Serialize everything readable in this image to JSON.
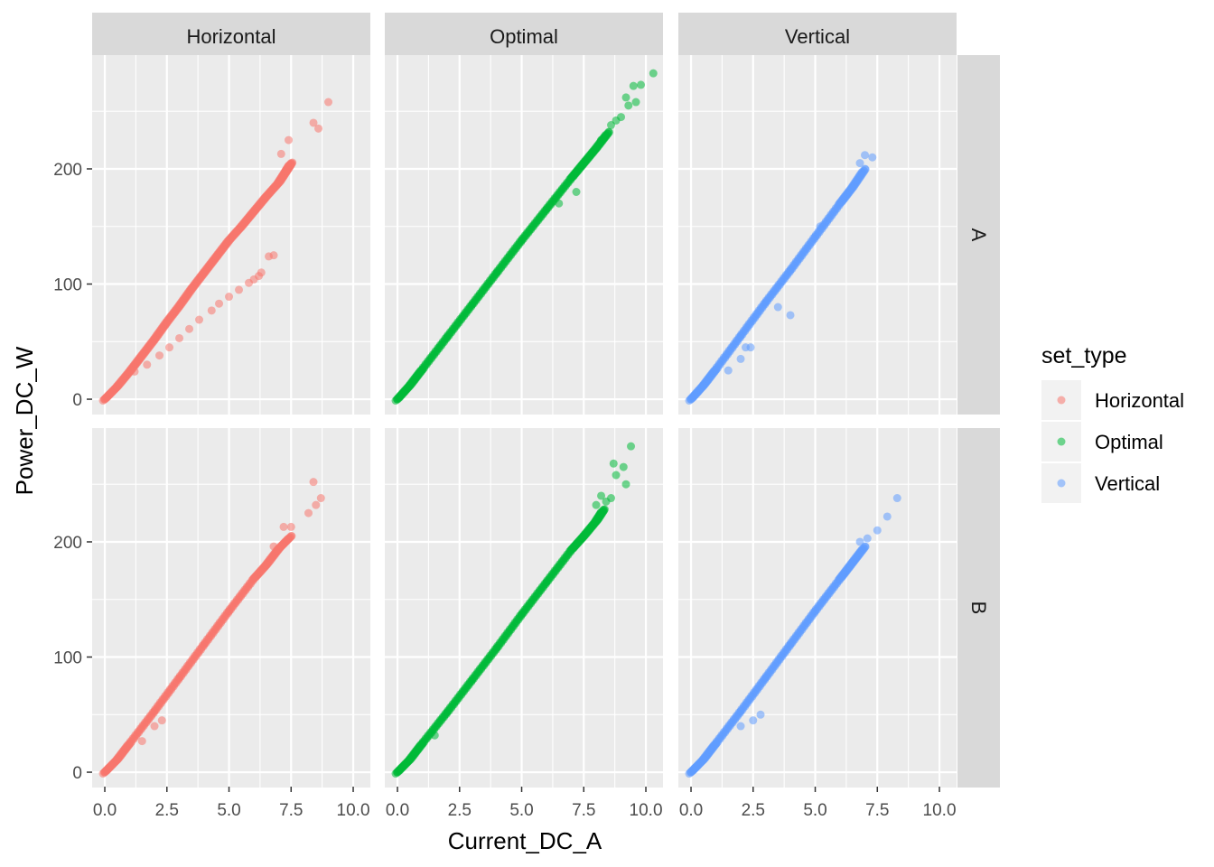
{
  "chart_data": {
    "type": "scatter",
    "xlabel": "Current_DC_A",
    "ylabel": "Power_DC_W",
    "xlim": [
      -0.51,
      10.69
    ],
    "ylim": [
      -13.3,
      298.8
    ],
    "x_ticks": [
      "0.0",
      "2.5",
      "5.0",
      "7.5",
      "10.0"
    ],
    "x_tick_values": [
      0,
      2.5,
      5,
      7.5,
      10
    ],
    "y_ticks": [
      "0",
      "100",
      "200"
    ],
    "y_tick_values": [
      0,
      100,
      200
    ],
    "grid": true,
    "facet_cols": [
      "Horizontal",
      "Optimal",
      "Vertical"
    ],
    "facet_rows": [
      "A",
      "B"
    ],
    "legend": {
      "title": "set_type",
      "placement": "right",
      "entries": [
        {
          "label": "Horizontal",
          "color": "#F8766D"
        },
        {
          "label": "Optimal",
          "color": "#00BA38"
        },
        {
          "label": "Vertical",
          "color": "#619CFF"
        }
      ]
    },
    "panels": [
      {
        "col": "Horizontal",
        "row": "A",
        "color": "#F8766D",
        "main": [
          [
            0,
            0
          ],
          [
            0.5,
            11
          ],
          [
            1,
            24
          ],
          [
            1.5,
            38
          ],
          [
            2,
            52
          ],
          [
            2.5,
            67
          ],
          [
            3,
            81
          ],
          [
            3.5,
            96
          ],
          [
            4,
            110
          ],
          [
            4.5,
            124
          ],
          [
            5,
            138
          ],
          [
            5.5,
            150
          ],
          [
            6,
            163
          ],
          [
            6.5,
            176
          ],
          [
            7,
            188
          ],
          [
            7.3,
            198
          ],
          [
            7.5,
            205
          ]
        ],
        "points": [
          [
            1.2,
            24
          ],
          [
            1.7,
            30
          ],
          [
            2.2,
            38
          ],
          [
            2.6,
            45
          ],
          [
            3.0,
            53
          ],
          [
            3.4,
            61
          ],
          [
            3.8,
            69
          ],
          [
            4.3,
            77
          ],
          [
            4.6,
            83
          ],
          [
            5.0,
            89
          ],
          [
            5.4,
            95
          ],
          [
            5.8,
            101
          ],
          [
            6.0,
            104
          ],
          [
            6.2,
            107
          ],
          [
            6.3,
            110
          ],
          [
            6.6,
            124
          ],
          [
            6.8,
            125
          ],
          [
            7.1,
            213
          ],
          [
            7.4,
            225
          ],
          [
            8.4,
            240
          ],
          [
            8.6,
            235
          ],
          [
            9.0,
            258
          ]
        ]
      },
      {
        "col": "Optimal",
        "row": "A",
        "color": "#00BA38",
        "main": [
          [
            0,
            0
          ],
          [
            0.5,
            12
          ],
          [
            1,
            26
          ],
          [
            2,
            54
          ],
          [
            3,
            82
          ],
          [
            4,
            110
          ],
          [
            5,
            138
          ],
          [
            6,
            165
          ],
          [
            7,
            192
          ],
          [
            7.5,
            205
          ],
          [
            8,
            218
          ],
          [
            8.5,
            232
          ]
        ],
        "points": [
          [
            8.8,
            242
          ],
          [
            9.0,
            245
          ],
          [
            8.2,
            225
          ],
          [
            8.6,
            238
          ],
          [
            9.3,
            255
          ],
          [
            9.6,
            258
          ],
          [
            9.2,
            262
          ],
          [
            9.5,
            272
          ],
          [
            9.8,
            273
          ],
          [
            10.3,
            283
          ],
          [
            7.2,
            180
          ],
          [
            6.5,
            170
          ]
        ]
      },
      {
        "col": "Vertical",
        "row": "A",
        "color": "#619CFF",
        "main": [
          [
            0,
            0
          ],
          [
            0.5,
            12
          ],
          [
            1,
            26
          ],
          [
            2,
            55
          ],
          [
            3,
            84
          ],
          [
            4,
            112
          ],
          [
            5,
            141
          ],
          [
            6,
            170
          ],
          [
            6.5,
            184
          ],
          [
            7,
            200
          ]
        ],
        "points": [
          [
            1.5,
            25
          ],
          [
            2.0,
            35
          ],
          [
            2.4,
            45
          ],
          [
            2.2,
            45
          ],
          [
            4.0,
            73
          ],
          [
            3.5,
            80
          ],
          [
            6.8,
            205
          ],
          [
            7.0,
            212
          ],
          [
            7.3,
            210
          ],
          [
            5.2,
            150
          ]
        ]
      },
      {
        "col": "Horizontal",
        "row": "B",
        "color": "#F8766D",
        "main": [
          [
            0,
            0
          ],
          [
            0.5,
            11
          ],
          [
            1,
            25
          ],
          [
            2,
            53
          ],
          [
            3,
            82
          ],
          [
            4,
            111
          ],
          [
            5,
            140
          ],
          [
            6,
            168
          ],
          [
            6.5,
            180
          ],
          [
            7,
            194
          ],
          [
            7.5,
            205
          ]
        ],
        "points": [
          [
            1.5,
            27
          ],
          [
            2.0,
            40
          ],
          [
            2.3,
            45
          ],
          [
            7.2,
            213
          ],
          [
            7.5,
            213
          ],
          [
            6.8,
            196
          ],
          [
            8.2,
            225
          ],
          [
            8.4,
            252
          ],
          [
            8.5,
            232
          ],
          [
            8.7,
            238
          ]
        ]
      },
      {
        "col": "Optimal",
        "row": "B",
        "color": "#00BA38",
        "main": [
          [
            0,
            0
          ],
          [
            0.5,
            11
          ],
          [
            1,
            25
          ],
          [
            2,
            52
          ],
          [
            3,
            80
          ],
          [
            4,
            108
          ],
          [
            5,
            137
          ],
          [
            6,
            165
          ],
          [
            7,
            193
          ],
          [
            7.5,
            205
          ],
          [
            8,
            218
          ],
          [
            8.3,
            228
          ]
        ],
        "points": [
          [
            1.5,
            32
          ],
          [
            8.2,
            240
          ],
          [
            8.6,
            238
          ],
          [
            8.4,
            235
          ],
          [
            8.0,
            232
          ],
          [
            9.2,
            250
          ],
          [
            8.8,
            258
          ],
          [
            9.1,
            265
          ],
          [
            9.4,
            283
          ],
          [
            8.7,
            268
          ]
        ]
      },
      {
        "col": "Vertical",
        "row": "B",
        "color": "#619CFF",
        "main": [
          [
            0,
            0
          ],
          [
            0.5,
            11
          ],
          [
            1,
            25
          ],
          [
            2,
            53
          ],
          [
            3,
            82
          ],
          [
            4,
            111
          ],
          [
            5,
            140
          ],
          [
            6,
            168
          ],
          [
            6.5,
            182
          ],
          [
            7,
            196
          ]
        ],
        "points": [
          [
            2.0,
            40
          ],
          [
            2.5,
            45
          ],
          [
            2.8,
            50
          ],
          [
            6.8,
            200
          ],
          [
            7.1,
            203
          ],
          [
            7.5,
            210
          ],
          [
            7.9,
            222
          ],
          [
            8.3,
            238
          ]
        ]
      }
    ]
  }
}
